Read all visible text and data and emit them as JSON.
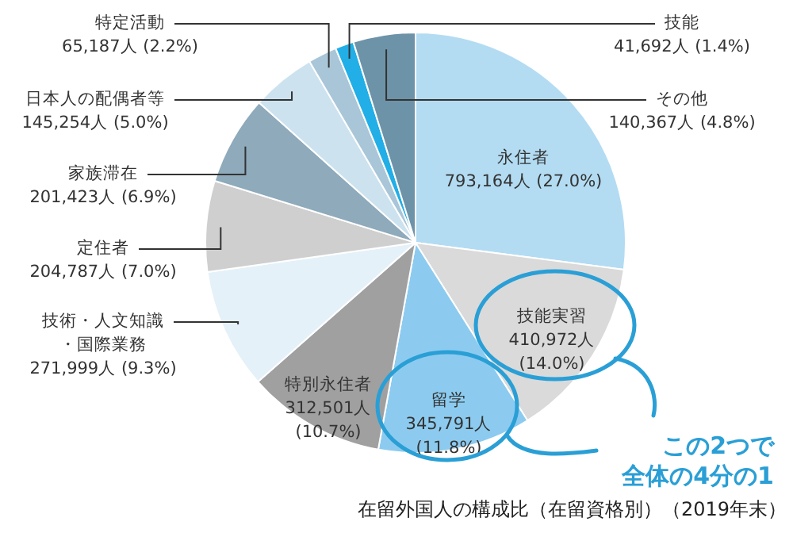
{
  "chart_data": {
    "type": "pie",
    "title": "在留外国人の構成比（在留資格別）（2019年末）",
    "categories": [
      "永住者",
      "技能実習",
      "留学",
      "特別永住者",
      "技術・人文知識・国際業務",
      "定住者",
      "家族滞在",
      "日本人の配偶者等",
      "特定活動",
      "技能",
      "その他"
    ],
    "values": [
      793164,
      410972,
      345791,
      312501,
      271999,
      204787,
      201423,
      145254,
      65187,
      41692,
      140367
    ],
    "value_labels": [
      "793,164人 (27.0%)",
      "410,972人 (14.0%)",
      "345,791人 (11.8%)",
      "312,501人 (10.7%)",
      "271,999人 (9.3%)",
      "204,787人 (7.0%)",
      "201,423人 (6.9%)",
      "145,254人 (5.0%)",
      "65,187人 (2.2%)",
      "41,692人 (1.4%)",
      "140,367人 (4.8%)"
    ],
    "colors": [
      "#b3dcf3",
      "#dadada",
      "#8ccbef",
      "#a0a0a0",
      "#e4f1f9",
      "#cfcfcf",
      "#8eaabb",
      "#cde2ef",
      "#a9c6d8",
      "#22aee6",
      "#6d93a8"
    ],
    "annotations": [
      "この2つで全体の4分の1"
    ],
    "legend": false
  }
}
